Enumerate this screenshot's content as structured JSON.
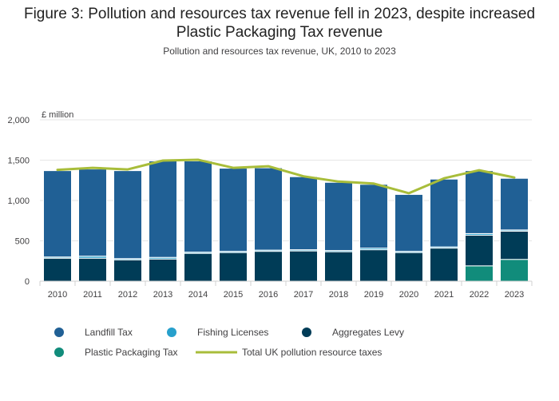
{
  "header": {
    "title": "Figure 3: Pollution and resources tax revenue fell in 2023, despite increased Plastic Packaging Tax revenue",
    "subtitle": "Pollution and resources tax revenue, UK, 2010 to 2023"
  },
  "colors": {
    "landfill": "#206095",
    "fishing": "#27a0cc",
    "aggregates": "#003c57",
    "plastic": "#118c7b",
    "total": "#a8bd3a",
    "grid": "#e6e6e6",
    "axis": "#d0d0d0",
    "text": "#414042"
  },
  "chart_data": {
    "type": "bar",
    "stacked": true,
    "title": "Figure 3: Pollution and resources tax revenue fell in 2023, despite increased Plastic Packaging Tax revenue",
    "subtitle": "Pollution and resources tax revenue, UK, 2010 to 2023",
    "ylabel": "£ million",
    "xlabel": "",
    "ylim": [
      0,
      2000
    ],
    "yticks": [
      0,
      500,
      1000,
      1500,
      2000
    ],
    "ytick_labels": [
      "0",
      "500",
      "1,000",
      "1,500",
      "2,000"
    ],
    "grid": true,
    "legend_position": "bottom",
    "categories": [
      "2010",
      "2011",
      "2012",
      "2013",
      "2014",
      "2015",
      "2016",
      "2017",
      "2018",
      "2019",
      "2020",
      "2021",
      "2022",
      "2023"
    ],
    "series": [
      {
        "name": "Plastic Packaging Tax",
        "key": "plastic",
        "values": [
          0,
          0,
          0,
          0,
          0,
          0,
          0,
          0,
          0,
          0,
          0,
          0,
          190,
          270
        ]
      },
      {
        "name": "Aggregates Levy",
        "key": "aggregates",
        "values": [
          285,
          285,
          265,
          275,
          345,
          355,
          370,
          375,
          365,
          390,
          355,
          410,
          380,
          350
        ]
      },
      {
        "name": "Fishing Licenses",
        "key": "fishing",
        "values": [
          15,
          25,
          15,
          20,
          15,
          15,
          15,
          15,
          15,
          20,
          15,
          15,
          20,
          15
        ]
      },
      {
        "name": "Landfill Tax",
        "key": "landfill",
        "values": [
          1070,
          1080,
          1090,
          1195,
          1130,
          1030,
          1020,
          905,
          845,
          790,
          705,
          840,
          780,
          640
        ]
      }
    ],
    "line_series": {
      "name": "Total UK pollution resource taxes",
      "key": "total",
      "values": [
        1380,
        1405,
        1385,
        1495,
        1505,
        1405,
        1425,
        1300,
        1235,
        1210,
        1090,
        1275,
        1375,
        1285
      ]
    },
    "legend_order": [
      "landfill",
      "fishing",
      "aggregates",
      "plastic",
      "total"
    ]
  }
}
